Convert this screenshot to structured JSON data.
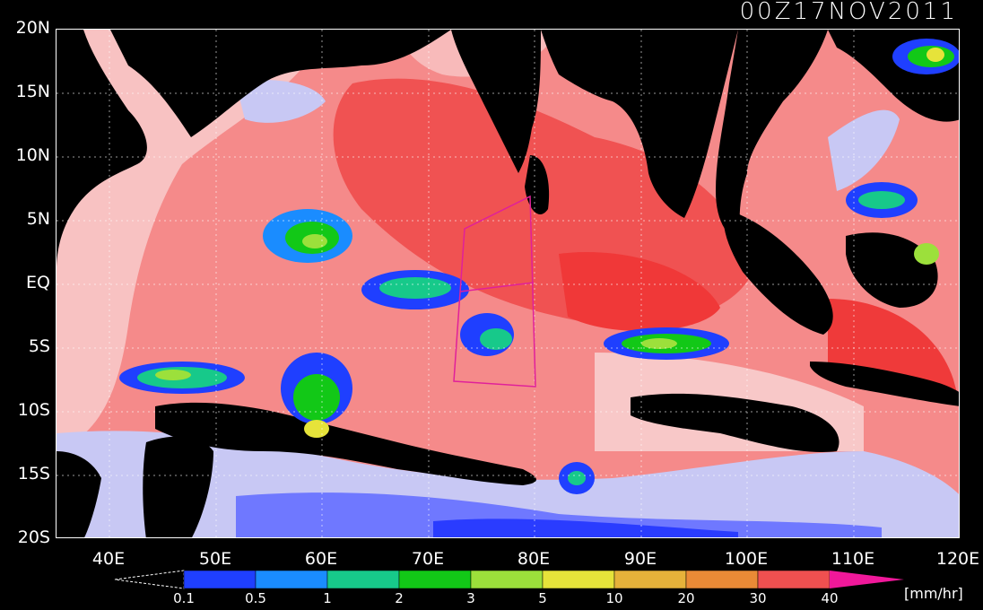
{
  "timestamp": "00Z17NOV2011",
  "lat_labels": [
    "20N",
    "15N",
    "10N",
    "5N",
    "EQ",
    "5S",
    "10S",
    "15S",
    "20S"
  ],
  "lon_labels": [
    "40E",
    "50E",
    "60E",
    "70E",
    "80E",
    "90E",
    "100E",
    "110E",
    "120E"
  ],
  "colorbar": {
    "labels": [
      "0.1",
      "0.5",
      "1",
      "2",
      "3",
      "5",
      "10",
      "20",
      "30",
      "40"
    ],
    "colors": [
      "#1f3fff",
      "#1a8cff",
      "#17c98a",
      "#12c817",
      "#9ce03b",
      "#e6e33a",
      "#e6b23a",
      "#ea8a36",
      "#f05050"
    ],
    "arrow_color": "#f0189a",
    "unit": "[mm/hr]"
  },
  "map_colors": {
    "land": "#000000",
    "ocean_warm": "#f58a8a",
    "ocean_hot": "#f04848",
    "ocean_pale": "#f8c8c8",
    "ocean_cool": "#c8c8f4",
    "ocean_blue": "#6470ff",
    "ocean_deep": "#2840ff",
    "box_line": "#e0209a"
  }
}
